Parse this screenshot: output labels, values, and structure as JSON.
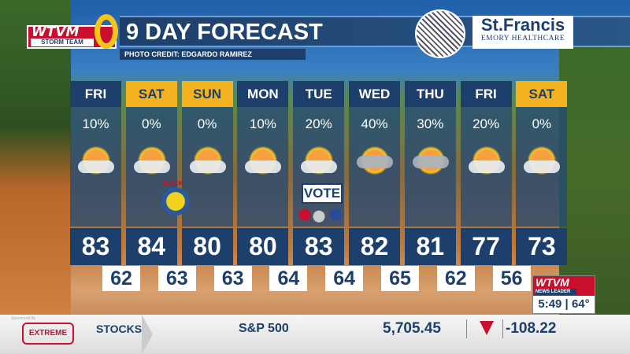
{
  "header": {
    "title": "9 DAY FORECAST",
    "photo_credit": "PHOTO CREDIT: EDGARDO RAMIREZ",
    "station_logo": "WTVM 9 abc",
    "storm_team": "STORM TEAM",
    "sponsor_name": "St.Francis",
    "sponsor_sub": "EMORY HEALTHCARE"
  },
  "days": [
    {
      "day": "FRI",
      "weekend": false,
      "precip": "10%",
      "icon": "partly-sunny",
      "high": "83",
      "low": "62"
    },
    {
      "day": "SAT",
      "weekend": true,
      "precip": "0%",
      "icon": "partly-sunny",
      "high": "84",
      "low": "63"
    },
    {
      "day": "SUN",
      "weekend": true,
      "precip": "0%",
      "icon": "partly-sunny",
      "high": "80",
      "low": "63"
    },
    {
      "day": "MON",
      "weekend": false,
      "precip": "10%",
      "icon": "partly-sunny",
      "high": "80",
      "low": "64"
    },
    {
      "day": "TUE",
      "weekend": false,
      "precip": "20%",
      "icon": "partly-sunny",
      "high": "83",
      "low": "64"
    },
    {
      "day": "WED",
      "weekend": false,
      "precip": "40%",
      "icon": "scattered-showers",
      "high": "82",
      "low": "65"
    },
    {
      "day": "THU",
      "weekend": false,
      "precip": "30%",
      "icon": "scattered-showers",
      "high": "81",
      "low": "62"
    },
    {
      "day": "FRI",
      "weekend": false,
      "precip": "20%",
      "icon": "partly-sunny",
      "high": "77",
      "low": "56"
    },
    {
      "day": "SAT",
      "weekend": true,
      "precip": "0%",
      "icon": "hazy-sun",
      "high": "73"
    }
  ],
  "badges": {
    "back": "BACK",
    "vote": "VOTE"
  },
  "bug": {
    "logo": "WTVM",
    "sub": "NEWS LEADER",
    "time": "5:49",
    "temp": "64°"
  },
  "ticker": {
    "sponsor_label": "Sponsored By",
    "sponsor": "EXTREME",
    "category": "STOCKS",
    "index": "S&P 500",
    "value": "5,705.45",
    "direction": "down",
    "change": "-108.22"
  },
  "colors": {
    "navy": "#1d3f6b",
    "weekend": "#f3b21e",
    "red": "#c8102e"
  }
}
